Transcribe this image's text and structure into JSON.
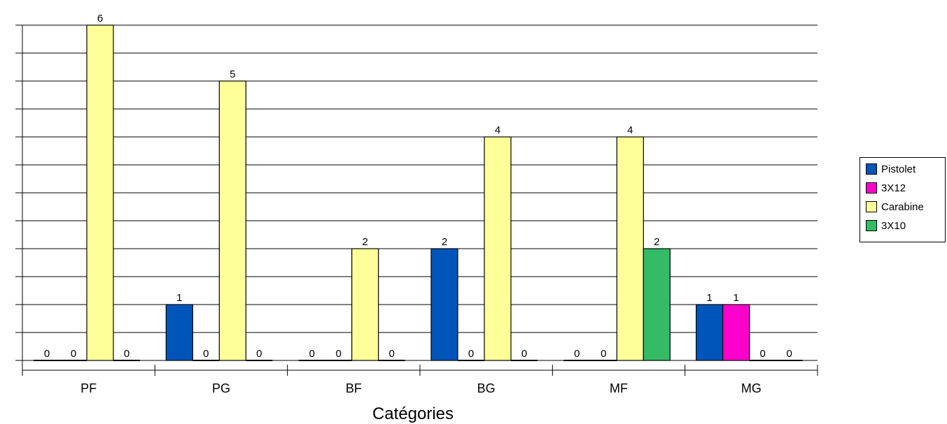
{
  "chart_data": {
    "type": "bar",
    "title": "",
    "xlabel": "Catégories",
    "ylabel": "",
    "categories": [
      "PF",
      "PG",
      "BF",
      "BG",
      "MF",
      "MG"
    ],
    "series": [
      {
        "name": "Pistolet",
        "color": "#0055bb",
        "values": [
          0,
          1,
          0,
          2,
          0,
          1
        ]
      },
      {
        "name": "3X12",
        "color": "#ff00cc",
        "values": [
          0,
          0,
          0,
          0,
          0,
          1
        ]
      },
      {
        "name": "Carabine",
        "color": "#ffff99",
        "values": [
          6,
          5,
          2,
          4,
          4,
          0
        ]
      },
      {
        "name": "3X10",
        "color": "#33bb66",
        "values": [
          0,
          0,
          0,
          0,
          2,
          0
        ]
      }
    ],
    "ylim": [
      0,
      6
    ],
    "y_gridline_step": 0.5,
    "grid": true,
    "legend_position": "right"
  }
}
